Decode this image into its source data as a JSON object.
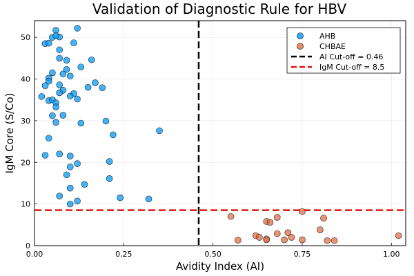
{
  "chart_data": {
    "type": "scatter",
    "title": "Validation of Diagnostic Rule for HBV",
    "xlabel": "Avidity Index (AI)",
    "ylabel": "IgM Core (S/Co)",
    "xlim": [
      0,
      1.04
    ],
    "ylim": [
      0,
      54
    ],
    "x_ticks": [
      0.0,
      0.25,
      0.5,
      0.75,
      1.0
    ],
    "x_tick_labels": [
      "0.00",
      "0.25",
      "0.50",
      "0.75",
      "1.00"
    ],
    "y_ticks": [
      0,
      10,
      20,
      30,
      40,
      50
    ],
    "y_tick_labels": [
      "0",
      "10",
      "20",
      "30",
      "40",
      "50"
    ],
    "grid": true,
    "legend_position": "top-right",
    "series": [
      {
        "name": "AHB",
        "color": "#009AFA",
        "points": [
          [
            0.03,
            48.5
          ],
          [
            0.04,
            48.6
          ],
          [
            0.05,
            50.0
          ],
          [
            0.06,
            51.7
          ],
          [
            0.07,
            50.1
          ],
          [
            0.12,
            52.2
          ],
          [
            0.06,
            50.4
          ],
          [
            0.11,
            48.7
          ],
          [
            0.07,
            47.0
          ],
          [
            0.09,
            44.5
          ],
          [
            0.16,
            44.6
          ],
          [
            0.07,
            45.0
          ],
          [
            0.13,
            42.9
          ],
          [
            0.09,
            42.3
          ],
          [
            0.05,
            41.5
          ],
          [
            0.08,
            41.2
          ],
          [
            0.1,
            40.7
          ],
          [
            0.04,
            40.2
          ],
          [
            0.04,
            39.5
          ],
          [
            0.17,
            39.1
          ],
          [
            0.07,
            38.6
          ],
          [
            0.03,
            38.4
          ],
          [
            0.15,
            38.0
          ],
          [
            0.19,
            37.9
          ],
          [
            0.08,
            37.3
          ],
          [
            0.07,
            36.7
          ],
          [
            0.11,
            36.5
          ],
          [
            0.02,
            35.8
          ],
          [
            0.1,
            35.9
          ],
          [
            0.12,
            35.2
          ],
          [
            0.04,
            34.8
          ],
          [
            0.05,
            35.0
          ],
          [
            0.06,
            34.3
          ],
          [
            0.06,
            33.3
          ],
          [
            0.05,
            31.2
          ],
          [
            0.08,
            31.3
          ],
          [
            0.06,
            29.6
          ],
          [
            0.13,
            29.4
          ],
          [
            0.2,
            29.9
          ],
          [
            0.35,
            27.6
          ],
          [
            0.22,
            26.6
          ],
          [
            0.04,
            25.8
          ],
          [
            0.03,
            21.7
          ],
          [
            0.07,
            22.0
          ],
          [
            0.1,
            21.5
          ],
          [
            0.21,
            20.2
          ],
          [
            0.12,
            19.7
          ],
          [
            0.1,
            18.9
          ],
          [
            0.09,
            17.0
          ],
          [
            0.21,
            16.1
          ],
          [
            0.14,
            14.7
          ],
          [
            0.1,
            13.8
          ],
          [
            0.07,
            11.9
          ],
          [
            0.24,
            11.5
          ],
          [
            0.32,
            11.2
          ],
          [
            0.12,
            10.7
          ],
          [
            0.1,
            10.0
          ]
        ]
      },
      {
        "name": "CHBAE",
        "color": "#E26F46",
        "points": [
          [
            0.55,
            7.0
          ],
          [
            0.75,
            8.2
          ],
          [
            0.81,
            6.6
          ],
          [
            0.68,
            6.8
          ],
          [
            0.65,
            5.8
          ],
          [
            0.66,
            5.6
          ],
          [
            0.8,
            3.8
          ],
          [
            0.71,
            3.1
          ],
          [
            0.68,
            2.9
          ],
          [
            0.62,
            2.4
          ],
          [
            0.72,
            2.0
          ],
          [
            1.02,
            2.4
          ],
          [
            0.75,
            1.4
          ],
          [
            0.65,
            1.6
          ],
          [
            0.57,
            1.3
          ],
          [
            0.65,
            1.4
          ],
          [
            0.7,
            1.4
          ],
          [
            0.82,
            1.2
          ],
          [
            0.84,
            1.2
          ],
          [
            0.63,
            2.0
          ]
        ]
      }
    ],
    "reference_lines": [
      {
        "name": "AI Cut-off = 0.46",
        "orientation": "vertical",
        "value": 0.46,
        "color": "#000000"
      },
      {
        "name": "IgM Cut-off = 8.5",
        "orientation": "horizontal",
        "value": 8.5,
        "color": "#E0140C"
      }
    ]
  }
}
